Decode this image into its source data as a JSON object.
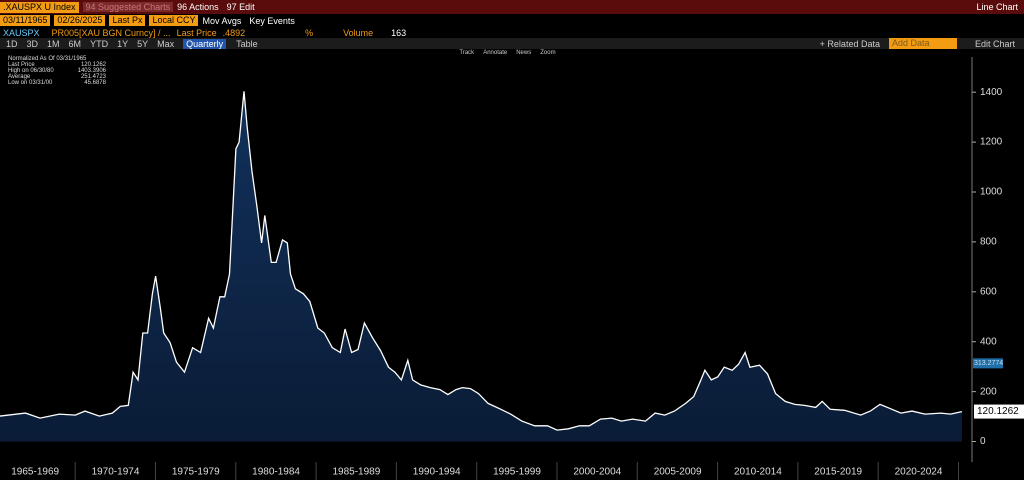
{
  "header": {
    "ticker": ".XAUSPX U Index",
    "suggested": "94 Suggested Charts",
    "actions": "96 Actions",
    "edit": "97 Edit",
    "view": "Line Chart"
  },
  "controls": {
    "start_date": "03/11/1965",
    "end_date": "02/26/2025",
    "field": "Last Px",
    "currency": "Local CCY",
    "mov_avgs": "Mov Avgs",
    "key_events": "Key Events"
  },
  "info": {
    "security": "XAUSPX",
    "formula": "PR005[XAU BGN Curncy] /  ...",
    "last_price_label": "Last Price",
    "last_price": ".4892",
    "percent": "%",
    "volume_label": "Volume",
    "volume": "163"
  },
  "periods": [
    "1D",
    "3D",
    "1M",
    "6M",
    "YTD",
    "1Y",
    "5Y",
    "Max"
  ],
  "frequency": "Quarterly",
  "table": "Table",
  "related": "+ Related Data",
  "add_data": "Add Data",
  "edit_chart": "Edit Chart",
  "tools": [
    "Track",
    "Annotate",
    "News",
    "Zoom"
  ],
  "legend_box": {
    "title": "Normalized As Of 03/31/1965",
    "rows": [
      [
        "Last Price",
        "120.1262"
      ],
      [
        "High on 06/30/80",
        "1403.3906"
      ],
      [
        "Average",
        "251.4723"
      ],
      [
        "Low on 03/31/00",
        "45.6878"
      ]
    ]
  },
  "chart_data": {
    "type": "line",
    "x": [
      1965.3,
      1966.9,
      1967.8,
      1969.0,
      1970.0,
      1970.6,
      1971.5,
      1972.3,
      1972.8,
      1973.3,
      1973.6,
      1973.9,
      1974.2,
      1974.5,
      1974.8,
      1975.0,
      1975.3,
      1975.5,
      1975.9,
      1976.3,
      1976.8,
      1977.3,
      1977.8,
      1978.3,
      1978.6,
      1979.0,
      1979.3,
      1979.6,
      1980.0,
      1980.2,
      1980.5,
      1980.7,
      1981.0,
      1981.3,
      1981.6,
      1981.8,
      1982.2,
      1982.5,
      1982.9,
      1983.2,
      1983.4,
      1983.7,
      1984.2,
      1984.6,
      1985.1,
      1985.5,
      1986.0,
      1986.5,
      1986.8,
      1987.2,
      1987.6,
      1988.0,
      1988.5,
      1989.0,
      1989.5,
      1989.9,
      1990.3,
      1990.7,
      1991.0,
      1991.5,
      1992.1,
      1992.7,
      1993.2,
      1993.7,
      1994.1,
      1994.6,
      1995.1,
      1995.7,
      1996.5,
      1997.1,
      1997.8,
      1998.6,
      1999.4,
      2000.0,
      2000.7,
      2001.4,
      2002.0,
      2002.7,
      2003.4,
      2004.0,
      2004.7,
      2005.5,
      2006.1,
      2006.7,
      2007.3,
      2008.0,
      2008.5,
      2008.9,
      2009.2,
      2009.6,
      2010.0,
      2010.4,
      2010.9,
      2011.3,
      2011.7,
      2012.0,
      2012.6,
      2013.1,
      2013.6,
      2014.2,
      2014.8,
      2015.4,
      2016.1,
      2016.5,
      2017.0,
      2017.9,
      2018.9,
      2019.5,
      2020.1,
      2020.7,
      2021.4,
      2022.1,
      2022.9,
      2023.9,
      2024.5,
      2025.2
    ],
    "series": [
      {
        "color": "#ffffff",
        "values": [
          102,
          114,
          94,
          110,
          106,
          122,
          102,
          114,
          141,
          145,
          278,
          247,
          435,
          435,
          592,
          663,
          533,
          435,
          396,
          318,
          278,
          376,
          357,
          494,
          455,
          580,
          580,
          671,
          1173,
          1200,
          1403.3906,
          1259,
          1082,
          945,
          796,
          906,
          718,
          718,
          808,
          796,
          671,
          612,
          592,
          561,
          455,
          435,
          376,
          357,
          451,
          357,
          369,
          475,
          416,
          365,
          298,
          278,
          247,
          325,
          247,
          227,
          216,
          208,
          188,
          208,
          216,
          212,
          192,
          153,
          129,
          110,
          82,
          63,
          63,
          45.6878,
          51,
          63,
          63,
          90,
          94,
          82,
          90,
          82,
          114,
          106,
          122,
          153,
          180,
          239,
          286,
          247,
          259,
          298,
          286,
          310,
          357,
          298,
          306,
          271,
          192,
          161,
          149,
          145,
          137,
          161,
          129,
          125,
          106,
          122,
          149,
          133,
          114,
          122,
          110,
          114,
          110,
          120.1262
        ]
      }
    ],
    "moving_average": 313.2774,
    "xlim": [
      1965.31,
      2025.83
    ],
    "xticks": [
      {
        "value": 1967.5,
        "label": "1965-1969"
      },
      {
        "value": 1972.5,
        "label": "1970-1974"
      },
      {
        "value": 1977.5,
        "label": "1975-1979"
      },
      {
        "value": 1982.5,
        "label": "1980-1984"
      },
      {
        "value": 1987.5,
        "label": "1985-1989"
      },
      {
        "value": 1992.5,
        "label": "1990-1994"
      },
      {
        "value": 1997.5,
        "label": "1995-1999"
      },
      {
        "value": 2002.5,
        "label": "2000-2004"
      },
      {
        "value": 2007.5,
        "label": "2005-2009"
      },
      {
        "value": 2012.5,
        "label": "2010-2014"
      },
      {
        "value": 2017.5,
        "label": "2015-2019"
      },
      {
        "value": 2022.5,
        "label": "2020-2024"
      }
    ],
    "ylim": [
      -82,
      1541
    ],
    "yticks": [
      0,
      200,
      400,
      600,
      800,
      1000,
      1200,
      1400
    ]
  }
}
